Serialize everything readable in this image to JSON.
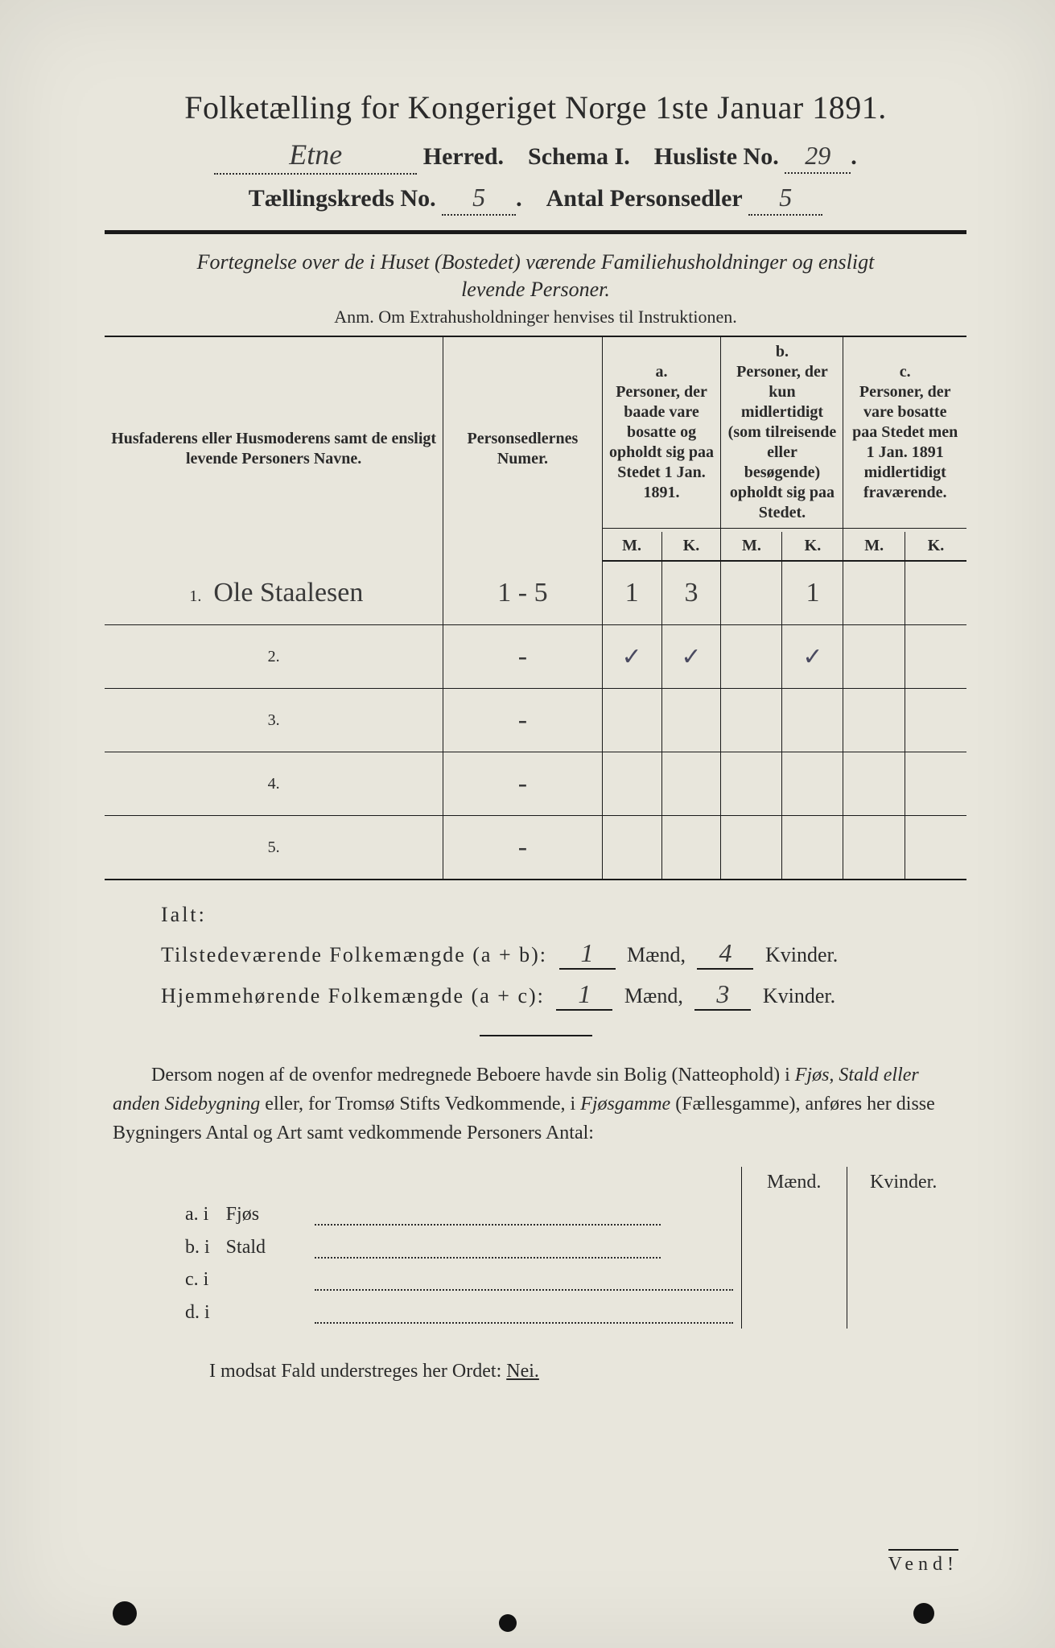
{
  "header": {
    "title": "Folketælling for Kongeriget Norge 1ste Januar 1891.",
    "herred_value": "Etne",
    "herred_label": "Herred.",
    "schema_label": "Schema I.",
    "husliste_label": "Husliste No.",
    "husliste_value": "29",
    "kreds_label": "Tællingskreds No.",
    "kreds_value": "5",
    "antal_label": "Antal Personsedler",
    "antal_value": "5"
  },
  "subhead": {
    "line1": "Fortegnelse over de i Huset (Bostedet) værende Familiehusholdninger og ensligt",
    "line2": "levende Personer.",
    "anm": "Anm.  Om Extrahusholdninger henvises til Instruktionen."
  },
  "table": {
    "col_name": "Husfaderens eller Husmoderens samt de ensligt levende Personers Navne.",
    "col_num": "Personsedlernes Numer.",
    "col_a_label": "a.",
    "col_a_text": "Personer, der baade vare bosatte og opholdt sig paa Stedet 1 Jan. 1891.",
    "col_b_label": "b.",
    "col_b_text": "Personer, der kun midlertidigt (som tilreisende eller besøgende) opholdt sig paa Stedet.",
    "col_c_label": "c.",
    "col_c_text": "Personer, der vare bosatte paa Stedet men 1 Jan. 1891 midlertidigt fraværende.",
    "m": "M.",
    "k": "K.",
    "rows": [
      {
        "n": "1.",
        "name": "Ole Staalesen",
        "num": "1 - 5",
        "aM": "1",
        "aK": "3",
        "bM": "",
        "bK": "1",
        "cM": "",
        "cK": ""
      },
      {
        "n": "2.",
        "name": "",
        "num": "-",
        "aM": "tick",
        "aK": "tick",
        "bM": "",
        "bK": "tick",
        "cM": "",
        "cK": ""
      },
      {
        "n": "3.",
        "name": "",
        "num": "-",
        "aM": "",
        "aK": "",
        "bM": "",
        "bK": "",
        "cM": "",
        "cK": ""
      },
      {
        "n": "4.",
        "name": "",
        "num": "-",
        "aM": "",
        "aK": "",
        "bM": "",
        "bK": "",
        "cM": "",
        "cK": ""
      },
      {
        "n": "5.",
        "name": "",
        "num": "-",
        "aM": "",
        "aK": "",
        "bM": "",
        "bK": "",
        "cM": "",
        "cK": ""
      }
    ]
  },
  "ialt": {
    "title": "Ialt:",
    "pres_label": "Tilstedeværende Folkemængde (a + b):",
    "pres_m": "1",
    "pres_k": "4",
    "home_label": "Hjemmehørende Folkemængde (a + c):",
    "home_m": "1",
    "home_k": "3",
    "maend": "Mænd,",
    "kvinder": "Kvinder."
  },
  "para": "Dersom nogen af de ovenfor medregnede Beboere havde sin Bolig (Natteophold) i Fjøs, Stald eller anden Sidebygning eller, for Tromsø Stifts Vedkommende, i Fjøsgamme (Fællesgamme), anføres her disse Bygningers Antal og Art samt vedkommende Personers Antal:",
  "bld": {
    "maend": "Mænd.",
    "kvinder": "Kvinder.",
    "rows": [
      {
        "l": "a.  i",
        "t": "Fjøs"
      },
      {
        "l": "b.  i",
        "t": "Stald"
      },
      {
        "l": "c.  i",
        "t": ""
      },
      {
        "l": "d.  i",
        "t": ""
      }
    ]
  },
  "nei": {
    "text": "I modsat Fald understreges her Ordet:",
    "word": "Nei."
  },
  "vend": "Vend!",
  "style": {
    "page_bg": "#e8e6dc",
    "ink": "#2a2a2a"
  }
}
